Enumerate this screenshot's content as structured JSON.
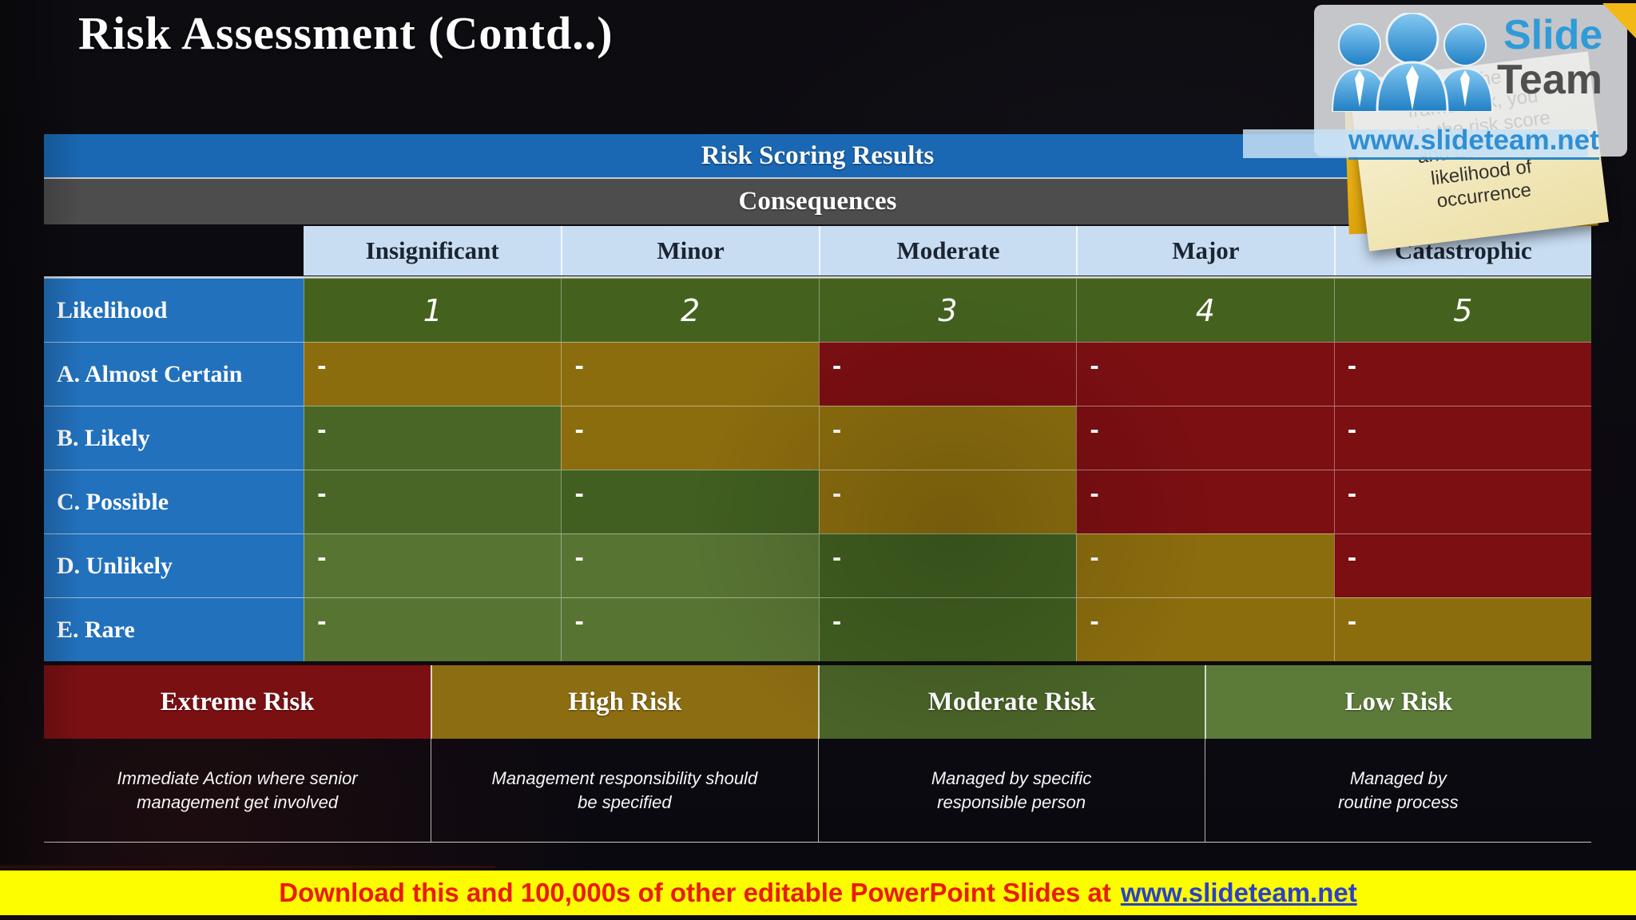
{
  "title": "Risk Assessment (Contd..)",
  "colors": {
    "red": "#7b0f12",
    "olive": "#8c6d0e",
    "green_dark": "#415f20",
    "green_mid": "#4a6627",
    "green_light": "#587433",
    "likelihood_green": "#44621e",
    "header_blue": "#1a68b3",
    "consequences_gray": "#4d4d4d",
    "column_header_bg": "#c8ddf2",
    "row_label_blue": "#2271bd",
    "legend_extreme": "#7b1013",
    "legend_high": "#8c6d12",
    "legend_moderate": "#4a6428",
    "legend_low": "#5c7b39",
    "banner_bg": "#fdfd00",
    "banner_text": "#ea1c00",
    "link_blue": "#2b41c6",
    "logo_blue": "#2f9bd8",
    "logo_gray": "#4f4f4f",
    "url_blue": "#2f8fd4",
    "gold": "#f2b815"
  },
  "table": {
    "scoring_header": "Risk Scoring Results",
    "consequences_header": "Consequences",
    "columns": [
      "Insignificant",
      "Minor",
      "Moderate",
      "Major",
      "Catastrophic"
    ],
    "likelihood": {
      "label": "Likelihood",
      "values": [
        "1",
        "2",
        "3",
        "4",
        "5"
      ]
    },
    "marker": "-",
    "rows": [
      {
        "label": "A. Almost Certain",
        "cells": [
          "olive",
          "olive",
          "red",
          "red",
          "red"
        ]
      },
      {
        "label": "B. Likely",
        "cells": [
          "green_mid",
          "olive",
          "olive",
          "red",
          "red"
        ]
      },
      {
        "label": "C. Possible",
        "cells": [
          "green_mid",
          "green_dark",
          "olive",
          "red",
          "red"
        ]
      },
      {
        "label": "D. Unlikely",
        "cells": [
          "green_light",
          "green_light",
          "green_dark",
          "olive",
          "red"
        ]
      },
      {
        "label": "E. Rare",
        "cells": [
          "green_light",
          "green_light",
          "green_dark",
          "olive",
          "olive"
        ]
      }
    ]
  },
  "legend": [
    {
      "label": "Extreme Risk",
      "color_key": "legend_extreme",
      "desc_lines": [
        "Immediate Action where senior",
        "management get involved"
      ]
    },
    {
      "label": "High Risk",
      "color_key": "legend_high",
      "desc_lines": [
        "Management responsibility should",
        "be specified"
      ]
    },
    {
      "label": "Moderate Risk",
      "color_key": "legend_moderate",
      "desc_lines": [
        "Managed by specific",
        "responsible person"
      ]
    },
    {
      "label": "Low Risk",
      "color_key": "legend_low",
      "desc_lines": [
        "Managed by",
        "routine process"
      ]
    }
  ],
  "branding": {
    "logo_slide": "Slide",
    "logo_team": "Team",
    "url": "www.slideteam.net",
    "note_lines": [
      "s of the",
      "framework, you",
      "tain the risk score",
      "and determine",
      "likelihood of",
      "occurrence"
    ]
  },
  "footer": {
    "text": "Download this and 100,000s of other editable PowerPoint Slides at",
    "link": "www.slideteam.net"
  }
}
